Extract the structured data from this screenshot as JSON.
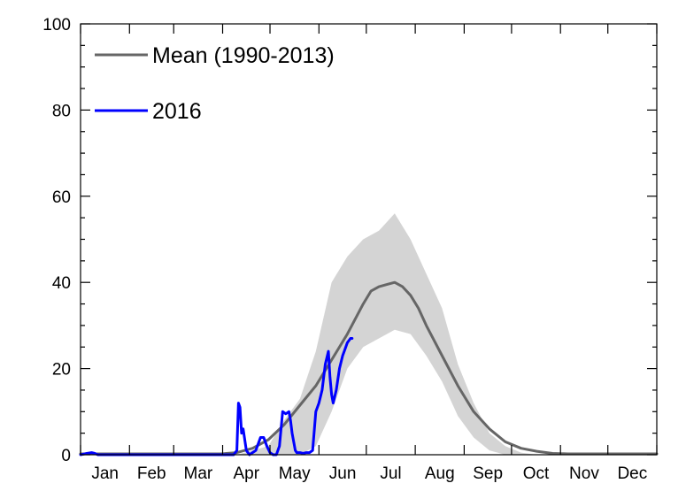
{
  "chart_data": {
    "type": "line",
    "title": "",
    "xlabel": "",
    "ylabel": "",
    "xlim": [
      1,
      366
    ],
    "ylim": [
      0,
      100
    ],
    "grid": false,
    "legend_position": "top-left",
    "x_tick_labels": [
      "Jan",
      "Feb",
      "Mar",
      "Apr",
      "May",
      "Jun",
      "Jul",
      "Aug",
      "Sep",
      "Oct",
      "Nov",
      "Dec"
    ],
    "y_ticks": [
      0,
      20,
      40,
      60,
      80,
      100
    ],
    "y_tick_labels": [
      "0",
      "20",
      "40",
      "60",
      "80",
      "100"
    ],
    "legend": [
      {
        "label": "Mean (1990-2013)",
        "color": "#666666"
      },
      {
        "label": "2016",
        "color": "#0000ff"
      }
    ],
    "band": {
      "color": "#d4d4d4",
      "x": [
        1,
        100,
        120,
        130,
        140,
        150,
        160,
        170,
        180,
        190,
        200,
        210,
        220,
        230,
        240,
        250,
        260,
        270,
        280,
        290,
        300,
        310,
        366
      ],
      "lower": [
        0,
        0,
        0,
        0,
        0,
        2,
        10,
        20,
        25,
        27,
        29,
        28,
        23,
        17,
        9,
        4,
        1,
        0,
        0,
        0,
        0,
        0,
        0
      ],
      "upper": [
        0,
        0,
        2,
        8,
        13,
        24,
        40,
        46,
        50,
        52,
        56,
        50,
        42,
        34,
        21,
        12,
        5,
        2,
        0.5,
        0,
        0,
        0,
        0
      ]
    },
    "series": [
      {
        "name": "Mean (1990-2013)",
        "color": "#666666",
        "x": [
          1,
          20,
          90,
          100,
          110,
          120,
          130,
          140,
          150,
          160,
          170,
          180,
          185,
          190,
          195,
          200,
          205,
          210,
          215,
          220,
          230,
          240,
          250,
          260,
          270,
          280,
          290,
          300,
          310,
          320,
          330,
          366
        ],
        "y": [
          0.2,
          0.2,
          0.2,
          0.5,
          1.5,
          3.5,
          7,
          11.5,
          16,
          22,
          28,
          35,
          38,
          39,
          39.5,
          40,
          39,
          37,
          34,
          30,
          23,
          16,
          10,
          6,
          3,
          1.5,
          0.8,
          0.3,
          0.2,
          0.2,
          0.2,
          0.2
        ]
      },
      {
        "name": "2016",
        "color": "#0000ff",
        "x": [
          1,
          5,
          8,
          10,
          12,
          15,
          50,
          60,
          80,
          90,
          95,
          98,
          100,
          101,
          102,
          103,
          104,
          106,
          108,
          112,
          115,
          117,
          119,
          121,
          123,
          125,
          127,
          129,
          131,
          133,
          134,
          135,
          136,
          137,
          138,
          140,
          142,
          144,
          146,
          148,
          150,
          152,
          154,
          156,
          158,
          159,
          160,
          161,
          163,
          165,
          167,
          168,
          170,
          172,
          173
        ],
        "y": [
          0,
          0.3,
          0.5,
          0.3,
          0,
          0,
          0,
          0,
          0,
          0,
          0,
          0,
          1,
          12,
          11,
          5,
          6,
          1,
          0,
          1,
          4,
          4,
          2,
          0.5,
          0,
          0,
          2,
          10,
          9.5,
          10,
          8,
          5,
          3,
          1,
          0.5,
          0.5,
          0.3,
          0.5,
          0.5,
          1,
          10,
          12,
          15,
          21,
          24,
          18,
          14,
          12,
          15,
          20,
          23,
          24,
          26,
          27,
          27
        ]
      }
    ]
  }
}
